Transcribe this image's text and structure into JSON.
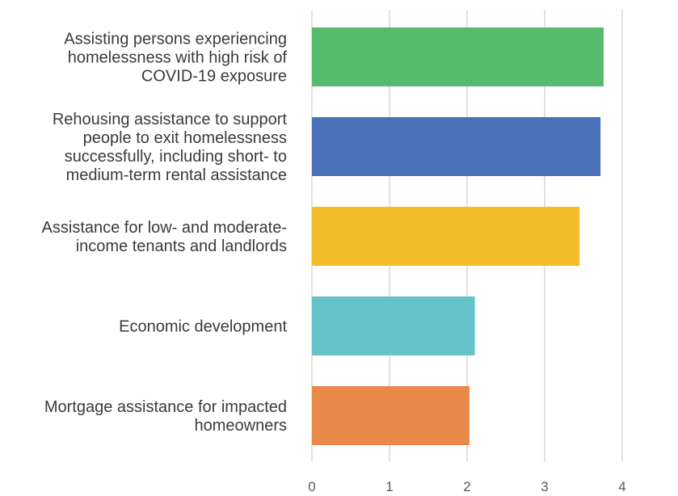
{
  "chart_data": {
    "type": "bar",
    "orientation": "horizontal",
    "categories": [
      [
        "Assisting persons experiencing",
        "homelessness with high risk of",
        "COVID-19 exposure"
      ],
      [
        "Rehousing assistance to support",
        "people to exit homelessness",
        "successfully, including short- to",
        "medium-term rental assistance"
      ],
      [
        "Assistance for low- and moderate-",
        "income tenants and landlords"
      ],
      [
        "Economic development"
      ],
      [
        "Mortgage assistance for impacted",
        "homeowners"
      ]
    ],
    "values": [
      3.76,
      3.72,
      3.45,
      2.1,
      2.03
    ],
    "colors": [
      "#57bb6e",
      "#4a72b8",
      "#f2bc2b",
      "#63c3c9",
      "#e8894a"
    ],
    "xticks": [
      "0",
      "1",
      "2",
      "3",
      "4"
    ],
    "xlim": [
      0,
      4
    ],
    "grid": true,
    "legend": "none",
    "title": "",
    "xlabel": "",
    "ylabel": ""
  }
}
